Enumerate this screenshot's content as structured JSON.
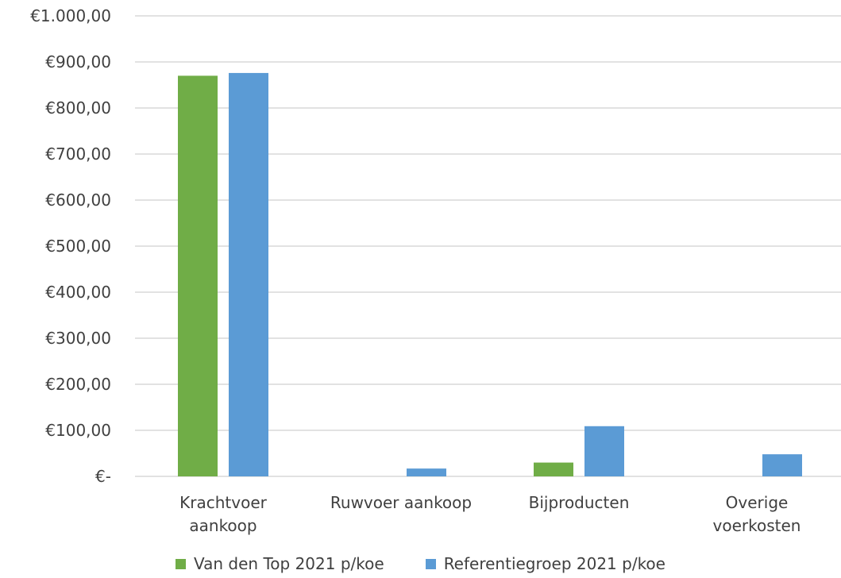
{
  "chart_data": {
    "type": "bar",
    "categories": [
      [
        "Krachtvoer",
        "aankoop"
      ],
      [
        "Ruwvoer aankoop"
      ],
      [
        "Bijproducten"
      ],
      [
        "Overige",
        "voerkosten"
      ]
    ],
    "series": [
      {
        "name": "Van den Top 2021 p/koe",
        "color": "#70AD47",
        "values": [
          870,
          0,
          30,
          0
        ]
      },
      {
        "name": "Referentiegroep 2021 p/koe",
        "color": "#5B9BD5",
        "values": [
          876,
          17,
          109,
          48
        ]
      }
    ],
    "yticks": [
      {
        "value": 0,
        "label": "€-"
      },
      {
        "value": 100,
        "label": "€100,00"
      },
      {
        "value": 200,
        "label": "€200,00"
      },
      {
        "value": 300,
        "label": "€300,00"
      },
      {
        "value": 400,
        "label": "€400,00"
      },
      {
        "value": 500,
        "label": "€500,00"
      },
      {
        "value": 600,
        "label": "€600,00"
      },
      {
        "value": 700,
        "label": "€700,00"
      },
      {
        "value": 800,
        "label": "€800,00"
      },
      {
        "value": 900,
        "label": "€900,00"
      },
      {
        "value": 1000,
        "label": "€1.000,00"
      }
    ],
    "ylim": [
      0,
      1000
    ],
    "grid": true,
    "legend_position": "bottom"
  }
}
